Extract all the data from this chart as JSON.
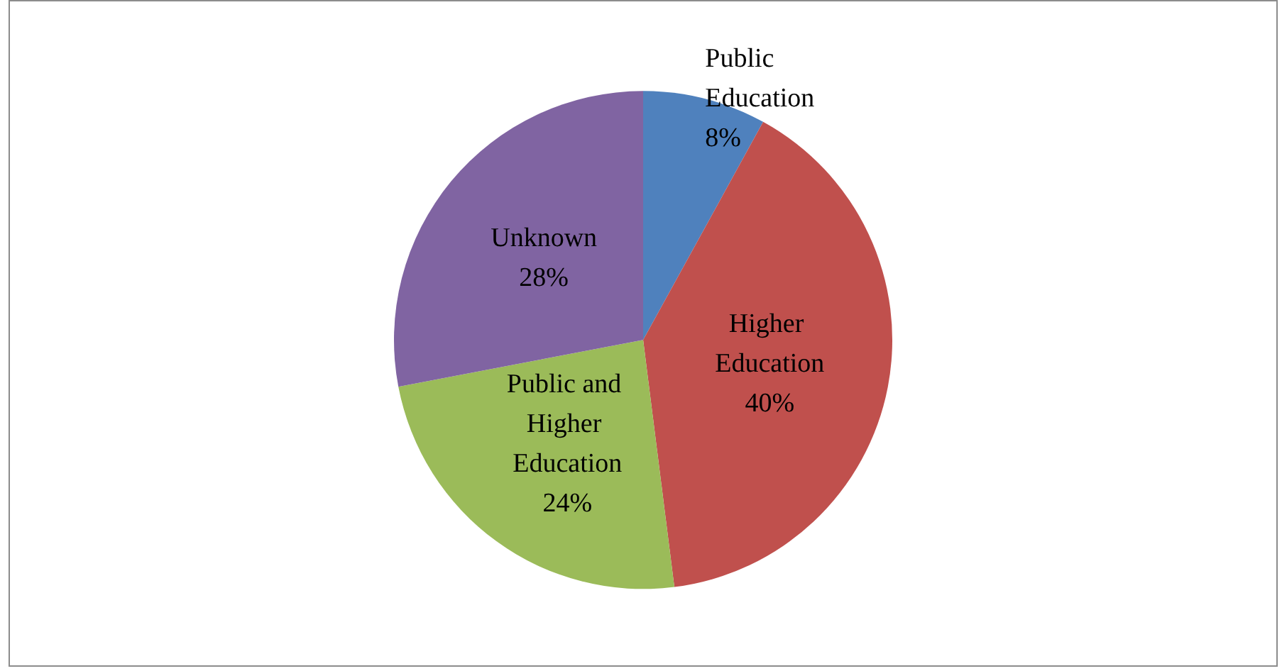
{
  "chart_data": {
    "type": "pie",
    "categories": [
      "Public Education",
      "Higher Education",
      "Public and Higher Education",
      "Unknown"
    ],
    "values": [
      8,
      40,
      24,
      28
    ],
    "colors": [
      "#4f81bd",
      "#c0504d",
      "#9bbb59",
      "#8064a2"
    ],
    "value_labels": [
      "8%",
      "40%",
      "24%",
      "28%"
    ],
    "legend": false
  }
}
